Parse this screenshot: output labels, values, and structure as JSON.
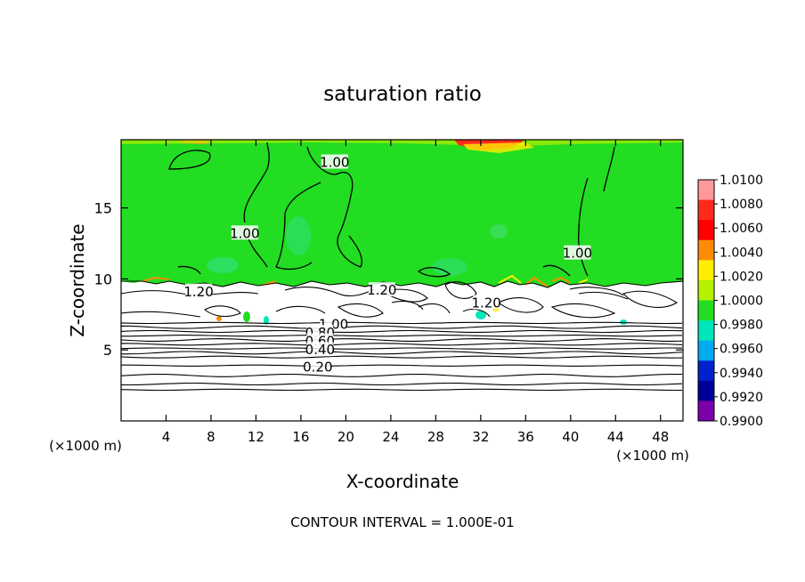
{
  "chart_data": {
    "type": "heatmap",
    "title": "saturation ratio",
    "xlabel": "X-coordinate",
    "ylabel": "Z-coordinate",
    "x_units": "(×1000 m)",
    "z_units": "(×1000 m)",
    "xlim": [
      0,
      50
    ],
    "ylim": [
      0,
      19.8
    ],
    "x_ticks": [
      4,
      8,
      12,
      16,
      20,
      24,
      28,
      32,
      36,
      40,
      44,
      48
    ],
    "y_ticks": [
      5,
      10,
      15
    ],
    "footer": "CONTOUR INTERVAL = 1.000E-01",
    "colorbar": {
      "levels": [
        "1.0100",
        "1.0080",
        "1.0060",
        "1.0040",
        "1.0020",
        "1.0000",
        "0.9980",
        "0.9960",
        "0.9940",
        "0.9920",
        "0.9900"
      ],
      "colors": [
        "#ff9999",
        "#ff2b1a",
        "#ff0000",
        "#ff8c00",
        "#ffee00",
        "#b4f000",
        "#22dd22",
        "#00e6b8",
        "#00aaee",
        "#0022cc",
        "#000099",
        "#7a00aa"
      ]
    },
    "contour_labels": [
      {
        "text": "1.00",
        "x": 19.0,
        "z": 18.2
      },
      {
        "text": "1.00",
        "x": 11.0,
        "z": 13.2
      },
      {
        "text": "1.00",
        "x": 40.6,
        "z": 11.8
      },
      {
        "text": "1.20",
        "x": 6.9,
        "z": 9.1
      },
      {
        "text": "1.20",
        "x": 23.2,
        "z": 9.2
      },
      {
        "text": "1.20",
        "x": 32.5,
        "z": 8.3
      },
      {
        "text": "1.00",
        "x": 18.9,
        "z": 6.8
      },
      {
        "text": "0.80",
        "x": 17.7,
        "z": 6.2
      },
      {
        "text": "0.60",
        "x": 17.7,
        "z": 5.6
      },
      {
        "text": "0.40",
        "x": 17.7,
        "z": 5.0
      },
      {
        "text": "0.20",
        "x": 17.5,
        "z": 3.8
      }
    ],
    "layered_contours_z": [
      2.2,
      2.6,
      3.2,
      3.9,
      4.5,
      4.8,
      5.1,
      5.4,
      5.7,
      6.0,
      6.3,
      6.6,
      6.9
    ]
  }
}
